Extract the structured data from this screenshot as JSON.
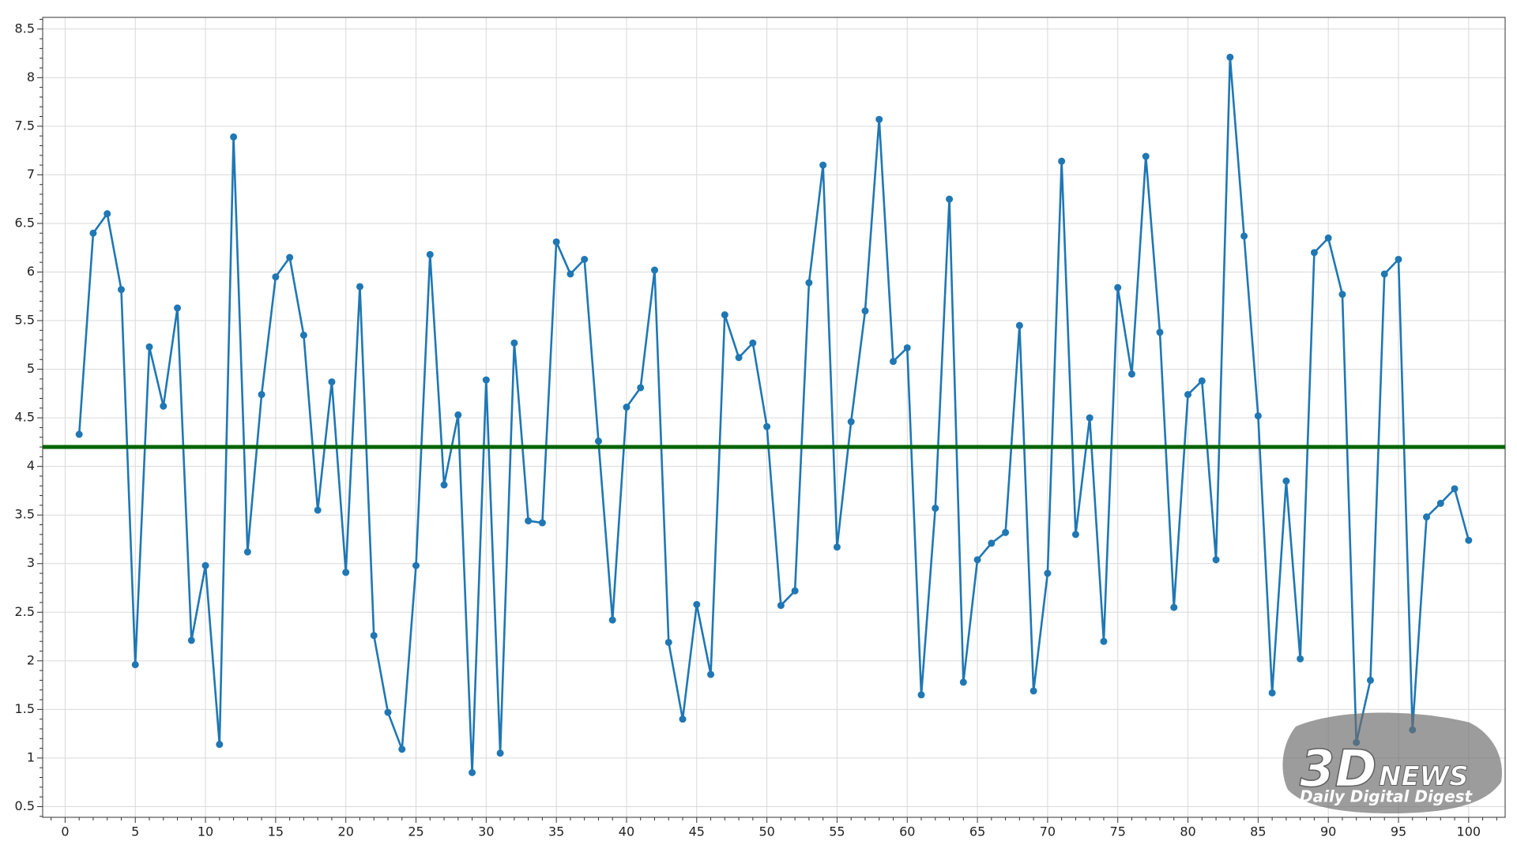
{
  "chart_data": {
    "type": "line",
    "x": [
      1,
      2,
      3,
      4,
      5,
      6,
      7,
      8,
      9,
      10,
      11,
      12,
      13,
      14,
      15,
      16,
      17,
      18,
      19,
      20,
      21,
      22,
      23,
      24,
      25,
      26,
      27,
      28,
      29,
      30,
      31,
      32,
      33,
      34,
      35,
      36,
      37,
      38,
      39,
      40,
      41,
      42,
      43,
      44,
      45,
      46,
      47,
      48,
      49,
      50,
      51,
      52,
      53,
      54,
      55,
      56,
      57,
      58,
      59,
      60,
      61,
      62,
      63,
      64,
      65,
      66,
      67,
      68,
      69,
      70,
      71,
      72,
      73,
      74,
      75,
      76,
      77,
      78,
      79,
      80,
      81,
      82,
      83,
      84,
      85,
      86,
      87,
      88,
      89,
      90,
      91,
      92,
      93,
      94,
      95,
      96,
      97,
      98,
      99,
      100
    ],
    "series": [
      {
        "color": "#1f77b4",
        "values": [
          4.33,
          6.4,
          6.6,
          5.82,
          1.96,
          5.23,
          4.62,
          5.63,
          2.21,
          2.98,
          1.14,
          7.39,
          3.12,
          4.74,
          5.95,
          6.15,
          5.35,
          3.55,
          4.87,
          2.91,
          5.85,
          2.26,
          1.47,
          1.09,
          2.98,
          6.18,
          3.81,
          4.53,
          0.85,
          4.89,
          1.05,
          5.27,
          3.44,
          3.42,
          6.31,
          5.98,
          6.13,
          4.26,
          2.42,
          4.61,
          4.81,
          6.02,
          2.19,
          1.4,
          2.58,
          1.86,
          5.56,
          5.12,
          5.27,
          4.41,
          2.57,
          2.72,
          5.89,
          7.1,
          3.17,
          4.46,
          5.6,
          7.57,
          5.08,
          5.22,
          1.65,
          3.57,
          6.75,
          1.78,
          3.04,
          3.21,
          3.32,
          5.45,
          1.69,
          2.9,
          7.14,
          3.3,
          4.5,
          2.2,
          5.84,
          4.95,
          7.19,
          5.38,
          2.55,
          4.74,
          4.88,
          3.04,
          8.21,
          6.37,
          4.52,
          1.67,
          3.85,
          2.02,
          6.2,
          6.35,
          5.77,
          1.16,
          1.8,
          5.98,
          6.13,
          1.29,
          3.48,
          3.62,
          3.77,
          3.24
        ]
      }
    ],
    "reference_line": {
      "value": 4.2,
      "color": "#006400"
    },
    "xlim": [
      -1.6,
      102.6
    ],
    "xticks": [
      0,
      5,
      10,
      15,
      20,
      25,
      30,
      35,
      40,
      45,
      50,
      55,
      60,
      65,
      70,
      75,
      80,
      85,
      90,
      95,
      100
    ],
    "ylim": [
      0.39,
      8.62
    ],
    "yticks": [
      0.5,
      1,
      1.5,
      2,
      2.5,
      3,
      3.5,
      4,
      4.5,
      5,
      5.5,
      6,
      6.5,
      7,
      7.5,
      8,
      8.5
    ],
    "grid": true,
    "minor_ticks": true
  },
  "watermark": {
    "logo_left": "3D",
    "logo_right": "NEWS",
    "tagline": "Daily Digital Digest"
  }
}
